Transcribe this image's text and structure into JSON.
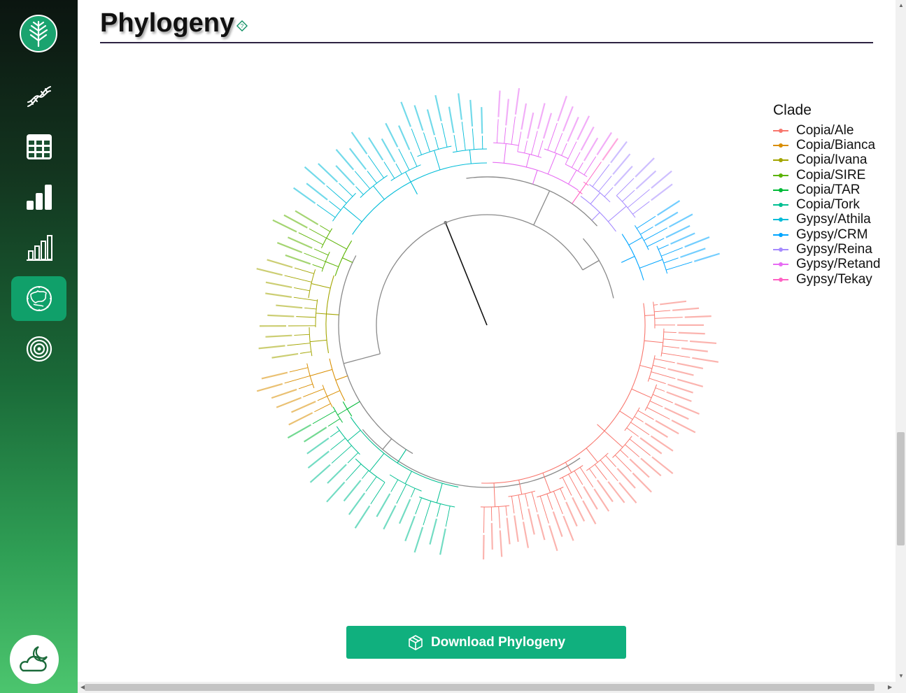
{
  "page": {
    "title": "Phylogeny"
  },
  "sidebar": {
    "items": [
      {
        "icon": "dna-icon"
      },
      {
        "icon": "table-icon"
      },
      {
        "icon": "bar-chart-icon"
      },
      {
        "icon": "bar-chart-outline-icon"
      },
      {
        "icon": "globe-icon",
        "active": true
      },
      {
        "icon": "target-icon"
      }
    ],
    "logo_icon": "tree-leaf-icon",
    "theme_icon": "moon-cloud-icon"
  },
  "legend": {
    "title": "Clade",
    "items": [
      {
        "label": "Copia/Ale",
        "color": "#f8766d"
      },
      {
        "label": "Copia/Bianca",
        "color": "#d98e00"
      },
      {
        "label": "Copia/Ivana",
        "color": "#a3a500"
      },
      {
        "label": "Copia/SIRE",
        "color": "#5bb300"
      },
      {
        "label": "Copia/TAR",
        "color": "#00ba38"
      },
      {
        "label": "Copia/Tork",
        "color": "#00bf91"
      },
      {
        "label": "Gypsy/Athila",
        "color": "#00bcd8"
      },
      {
        "label": "Gypsy/CRM",
        "color": "#00a5ff"
      },
      {
        "label": "Gypsy/Reina",
        "color": "#a58aff"
      },
      {
        "label": "Gypsy/Retand",
        "color": "#e76bf3"
      },
      {
        "label": "Gypsy/Tekay",
        "color": "#ff61c3"
      }
    ]
  },
  "tree": {
    "type": "circular-phylogeny",
    "leaf_counts": {
      "Copia/Ale": 44,
      "Copia/Bianca": 6,
      "Copia/Ivana": 10,
      "Copia/SIRE": 6,
      "Copia/TAR": 2,
      "Copia/Tork": 15,
      "Gypsy/Athila": 20,
      "Gypsy/CRM": 8,
      "Gypsy/Reina": 7,
      "Gypsy/Retand": 14,
      "Gypsy/Tekay": 1
    }
  },
  "download": {
    "label": "Download Phylogeny",
    "icon": "box-icon"
  }
}
